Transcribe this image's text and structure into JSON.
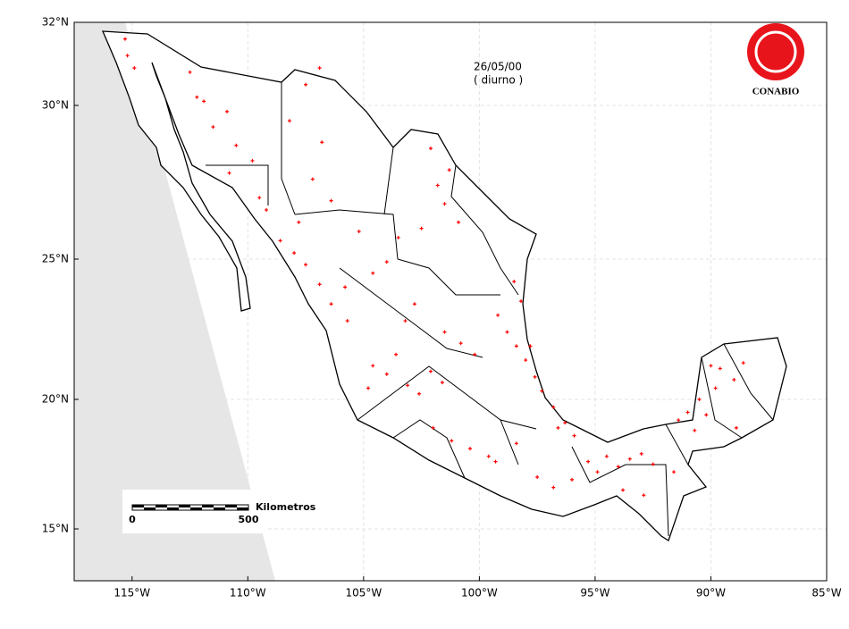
{
  "map": {
    "date": "26/05/00",
    "period": "( diurno )",
    "logo": "CONABIO",
    "scale": {
      "unit": "Kilometros",
      "start": "0",
      "end": "500"
    },
    "xlim": [
      -117.5,
      -85
    ],
    "ylim": [
      13,
      32
    ],
    "xticks": [
      {
        "value": -115,
        "label": "115°W"
      },
      {
        "value": -110,
        "label": "110°W"
      },
      {
        "value": -105,
        "label": "105°W"
      },
      {
        "value": -100,
        "label": "100°W"
      },
      {
        "value": -95,
        "label": "95°W"
      },
      {
        "value": -90,
        "label": "90°W"
      },
      {
        "value": -85,
        "label": "85°W"
      }
    ],
    "yticks": [
      {
        "value": 15,
        "label": "15°N"
      },
      {
        "value": 20,
        "label": "20°N"
      },
      {
        "value": 25,
        "label": "25°N"
      },
      {
        "value": 30,
        "label": "30°N"
      },
      {
        "value": 32,
        "label": "32°N"
      }
    ],
    "grid": true,
    "hotspot_color": "#ff0000",
    "hotspots": [
      [
        -115.3,
        31.6
      ],
      [
        -115.2,
        31.2
      ],
      [
        -114.9,
        30.9
      ],
      [
        -112.5,
        30.8
      ],
      [
        -112.2,
        30.2
      ],
      [
        -111.9,
        30.1
      ],
      [
        -111.5,
        29.3
      ],
      [
        -110.9,
        29.8
      ],
      [
        -110.5,
        28.7
      ],
      [
        -109.8,
        28.2
      ],
      [
        -110.8,
        27.8
      ],
      [
        -109.5,
        27.0
      ],
      [
        -109.2,
        26.6
      ],
      [
        -108.2,
        29.5
      ],
      [
        -107.5,
        30.5
      ],
      [
        -106.8,
        28.8
      ],
      [
        -107.2,
        27.6
      ],
      [
        -106.4,
        26.9
      ],
      [
        -107.8,
        26.2
      ],
      [
        -106.9,
        30.9
      ],
      [
        -108.6,
        25.6
      ],
      [
        -108.0,
        25.2
      ],
      [
        -107.5,
        24.8
      ],
      [
        -106.9,
        24.1
      ],
      [
        -106.4,
        23.4
      ],
      [
        -105.7,
        22.8
      ],
      [
        -105.2,
        25.9
      ],
      [
        -104.6,
        24.5
      ],
      [
        -104.0,
        24.9
      ],
      [
        -103.5,
        25.7
      ],
      [
        -105.8,
        24.0
      ],
      [
        -102.1,
        28.6
      ],
      [
        -101.8,
        27.4
      ],
      [
        -101.5,
        26.8
      ],
      [
        -100.9,
        26.2
      ],
      [
        -101.3,
        27.9
      ],
      [
        -102.5,
        26.0
      ],
      [
        -98.5,
        24.2
      ],
      [
        -98.2,
        23.5
      ],
      [
        -99.2,
        23.0
      ],
      [
        -98.8,
        22.4
      ],
      [
        -98.4,
        21.9
      ],
      [
        -102.8,
        23.4
      ],
      [
        -103.2,
        22.8
      ],
      [
        -101.5,
        22.4
      ],
      [
        -100.8,
        22.0
      ],
      [
        -100.2,
        21.6
      ],
      [
        -104.6,
        21.2
      ],
      [
        -104.0,
        20.9
      ],
      [
        -103.6,
        21.6
      ],
      [
        -103.1,
        20.5
      ],
      [
        -102.6,
        20.2
      ],
      [
        -102.1,
        21.0
      ],
      [
        -101.6,
        20.6
      ],
      [
        -104.8,
        20.4
      ],
      [
        -98.0,
        21.4
      ],
      [
        -97.6,
        20.8
      ],
      [
        -97.3,
        20.3
      ],
      [
        -96.8,
        19.7
      ],
      [
        -96.3,
        19.1
      ],
      [
        -95.9,
        18.6
      ],
      [
        -96.6,
        18.9
      ],
      [
        -97.8,
        21.9
      ],
      [
        -102.0,
        18.9
      ],
      [
        -101.2,
        18.4
      ],
      [
        -100.4,
        18.1
      ],
      [
        -99.6,
        17.8
      ],
      [
        -99.3,
        17.6
      ],
      [
        -98.4,
        18.3
      ],
      [
        -97.5,
        17.0
      ],
      [
        -96.8,
        16.6
      ],
      [
        -96.0,
        16.9
      ],
      [
        -95.3,
        17.6
      ],
      [
        -94.9,
        17.2
      ],
      [
        -94.5,
        17.8
      ],
      [
        -94.0,
        17.4
      ],
      [
        -93.5,
        17.7
      ],
      [
        -93.0,
        17.9
      ],
      [
        -92.5,
        17.5
      ],
      [
        -93.8,
        16.5
      ],
      [
        -91.6,
        17.2
      ],
      [
        -92.9,
        16.3
      ],
      [
        -91.4,
        19.2
      ],
      [
        -91.0,
        19.5
      ],
      [
        -90.7,
        18.8
      ],
      [
        -90.5,
        20.0
      ],
      [
        -90.2,
        19.4
      ],
      [
        -89.8,
        20.4
      ],
      [
        -89.6,
        21.1
      ],
      [
        -89.0,
        20.7
      ],
      [
        -88.6,
        21.3
      ],
      [
        -88.9,
        18.9
      ],
      [
        -90.0,
        21.2
      ]
    ]
  }
}
